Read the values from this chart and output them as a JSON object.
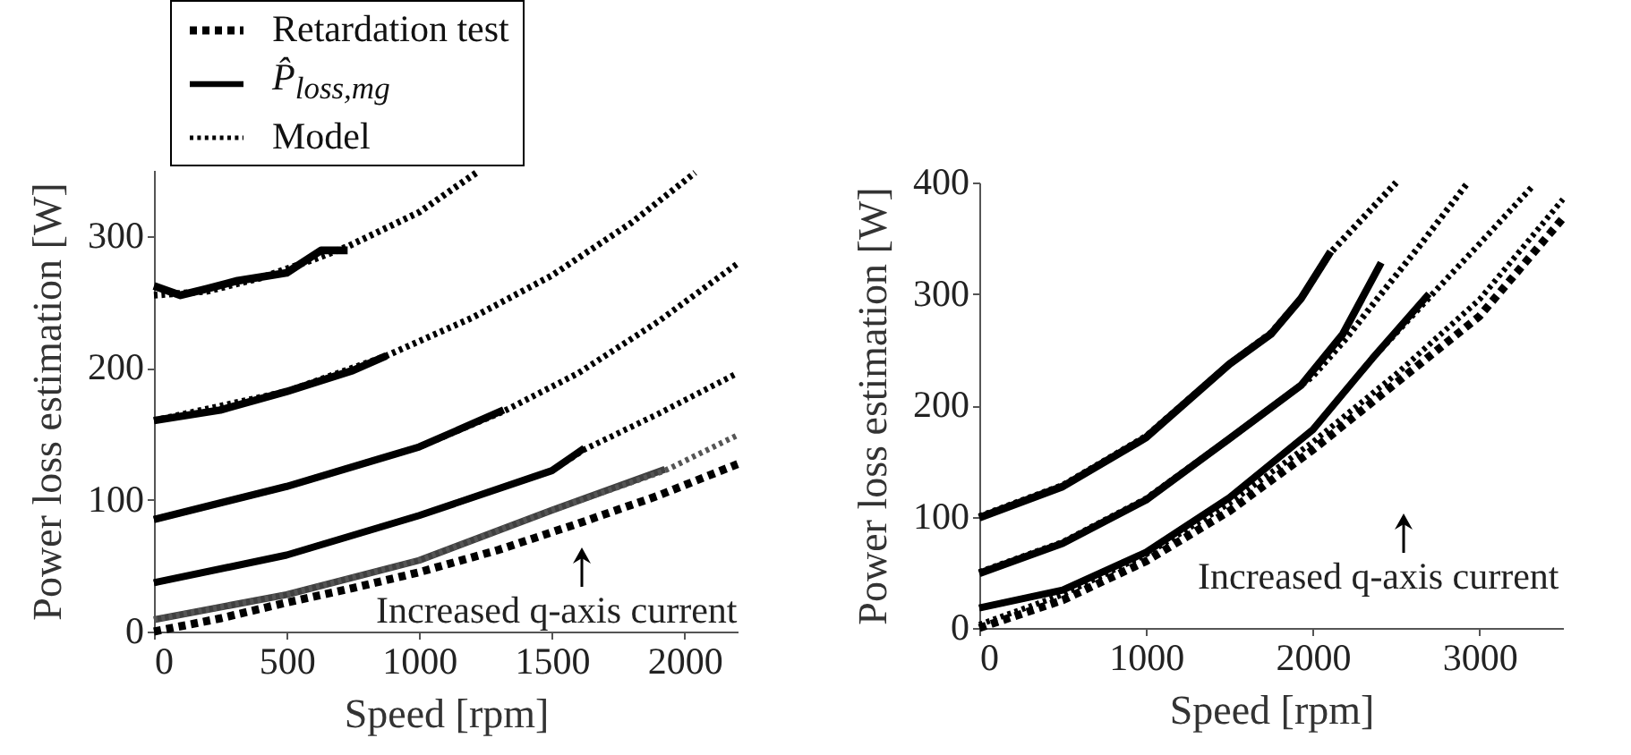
{
  "chart_data": [
    {
      "type": "line",
      "xlabel": "Speed [rpm]",
      "ylabel": "Power loss estimation [W]",
      "xlim": [
        0,
        2200
      ],
      "xticks": [
        0,
        500,
        1000,
        1500,
        2000
      ],
      "ylim": [
        0,
        350
      ],
      "yticks": [
        0,
        100,
        200,
        300
      ],
      "grid": false,
      "legend": "top left",
      "annotations": [
        "Increased q-axis current"
      ],
      "series": [
        {
          "name": "Retardation test",
          "color": "#000000",
          "line_style": "dashed",
          "x": [
            0,
            250,
            500,
            750,
            1000,
            1300,
            1600,
            1900,
            2200
          ],
          "values": [
            0,
            10,
            22,
            33,
            45,
            62,
            82,
            103,
            127
          ]
        },
        {
          "name": "P̂$_{loss,mg}$",
          "color": "#000000",
          "line_style": "solid",
          "x": [
            0,
            100,
            200,
            315,
            500,
            630,
            730
          ],
          "values": [
            262,
            255,
            260,
            266,
            272,
            289,
            289
          ]
        },
        {
          "color": "#000000",
          "line_style": "solid",
          "x": [
            0,
            250,
            500,
            750,
            875
          ],
          "values": [
            160,
            168,
            182,
            198,
            209
          ]
        },
        {
          "color": "#000000",
          "line_style": "solid",
          "x": [
            0,
            500,
            1000,
            1318
          ],
          "values": [
            85,
            110,
            140,
            168
          ]
        },
        {
          "color": "#000000",
          "line_style": "solid",
          "x": [
            0,
            500,
            1000,
            1500,
            1622
          ],
          "values": [
            37,
            58,
            88,
            122,
            139
          ]
        },
        {
          "color": "#404040",
          "line_style": "solid",
          "x": [
            0,
            500,
            1000,
            1500,
            1926
          ],
          "values": [
            9,
            28,
            54,
            92,
            123
          ]
        },
        {
          "name": "Model",
          "color": "#000000",
          "line_style": "dotted",
          "x": [
            0,
            200,
            400,
            600,
            730,
            1000,
            1216
          ],
          "values": [
            255,
            258,
            268,
            282,
            292,
            318,
            348
          ]
        },
        {
          "color": "#000000",
          "line_style": "dotted",
          "x": [
            0,
            500,
            875,
            1200,
            1500,
            1800,
            2040
          ],
          "values": [
            160,
            182,
            209,
            238,
            270,
            310,
            348
          ]
        },
        {
          "color": "#000000",
          "line_style": "dotted",
          "x": [
            0,
            500,
            1000,
            1318,
            1600,
            1900,
            2200
          ],
          "values": [
            85,
            110,
            140,
            167,
            196,
            235,
            279
          ]
        },
        {
          "color": "#000000",
          "line_style": "dotted",
          "x": [
            0,
            500,
            1000,
            1500,
            1622,
            1900,
            2200
          ],
          "values": [
            37,
            58,
            88,
            122,
            138,
            165,
            196
          ]
        },
        {
          "color": "#555555",
          "line_style": "dotted",
          "x": [
            0,
            500,
            1000,
            1500,
            1926,
            2200
          ],
          "values": [
            9,
            28,
            54,
            92,
            122,
            149
          ]
        }
      ]
    },
    {
      "type": "line",
      "xlabel": "Speed [rpm]",
      "ylabel": "Power loss estimation [W]",
      "xlim": [
        0,
        3500
      ],
      "xticks": [
        0,
        1000,
        2000,
        3000
      ],
      "ylim": [
        0,
        400
      ],
      "yticks": [
        0,
        100,
        200,
        300,
        400
      ],
      "grid": false,
      "annotations": [
        "Increased q-axis current"
      ],
      "series": [
        {
          "color": "#000000",
          "line_style": "dashed",
          "x": [
            0,
            500,
            1000,
            1500,
            2000,
            2500,
            3000,
            3500
          ],
          "values": [
            0,
            25,
            60,
            105,
            160,
            220,
            280,
            368
          ]
        },
        {
          "color": "#000000",
          "line_style": "solid",
          "x": [
            0,
            500,
            1000,
            1500,
            1750,
            1930,
            2107
          ],
          "values": [
            99,
            127,
            171,
            237,
            264,
            296,
            338
          ]
        },
        {
          "color": "#000000",
          "line_style": "solid",
          "x": [
            0,
            500,
            1000,
            1500,
            1930,
            2180,
            2410
          ],
          "values": [
            49,
            76,
            115,
            170,
            218,
            264,
            328
          ]
        },
        {
          "color": "#000000",
          "line_style": "solid",
          "x": [
            0,
            500,
            1000,
            1500,
            2000,
            2357,
            2696
          ],
          "values": [
            18,
            34,
            68,
            117,
            178,
            242,
            300
          ]
        },
        {
          "color": "#000000",
          "line_style": "dotted",
          "x": [
            0,
            500,
            1000,
            1500,
            1750,
            1930,
            2100,
            2300,
            2500
          ],
          "values": [
            100,
            128,
            172,
            237,
            265,
            296,
            336,
            368,
            400
          ]
        },
        {
          "color": "#000000",
          "line_style": "dotted",
          "x": [
            0,
            500,
            1000,
            1500,
            2000,
            2200,
            2410,
            2650,
            2930
          ],
          "values": [
            50,
            77,
            116,
            170,
            226,
            260,
            300,
            345,
            400
          ]
        },
        {
          "color": "#000000",
          "line_style": "dotted",
          "x": [
            0,
            500,
            1000,
            1500,
            2000,
            2357,
            2700,
            3000,
            3320
          ],
          "values": [
            18,
            34,
            68,
            117,
            178,
            242,
            297,
            345,
            397
          ]
        },
        {
          "color": "#000000",
          "line_style": "dotted",
          "x": [
            0,
            500,
            1000,
            1500,
            2000,
            2500,
            3000,
            3500
          ],
          "values": [
            3,
            30,
            66,
            112,
            167,
            228,
            295,
            385
          ]
        }
      ]
    }
  ]
}
